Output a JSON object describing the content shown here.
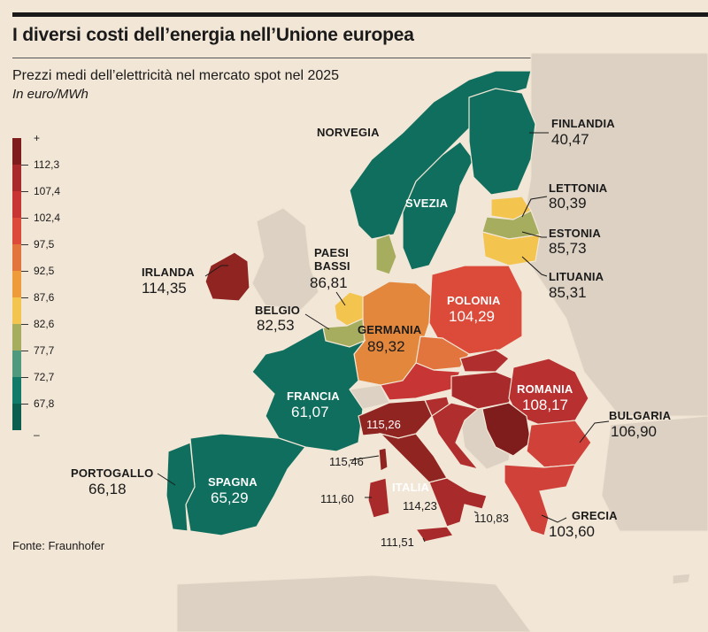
{
  "title": "I diversi costi dell’energia nell’Unione europea",
  "subtitle": "Prezzi medi dell’elettricità nel mercato spot nel 2025",
  "unit": "In euro/MWh",
  "source": "Fonte: Fraunhofer",
  "legend": {
    "top_label": "+",
    "bottom_label": "–",
    "ticks": [
      "112,3",
      "107,4",
      "102,4",
      "97,5",
      "92,5",
      "87,6",
      "82,6",
      "77,7",
      "72,7",
      "67,8"
    ],
    "colors": [
      "#7f1d1d",
      "#a82a2a",
      "#c83535",
      "#dc4a3a",
      "#e2753e",
      "#ee9b3c",
      "#f3c44e",
      "#a6ad5f",
      "#4f9a7e",
      "#117a68",
      "#0c5f4f"
    ]
  },
  "countries": {
    "norvegia": {
      "name": "NORVEGIA"
    },
    "svezia": {
      "name": "SVEZIA"
    },
    "finlandia": {
      "name": "FINLANDIA",
      "value": "40,47"
    },
    "lettonia": {
      "name": "LETTONIA",
      "value": "80,39"
    },
    "estonia": {
      "name": "ESTONIA",
      "value": "85,73"
    },
    "lituania": {
      "name": "LITUANIA",
      "value": "85,31"
    },
    "irlanda": {
      "name": "IRLANDA",
      "value": "114,35"
    },
    "paesibassi": {
      "name1": "PAESI",
      "name2": "BASSI",
      "value": "86,81"
    },
    "belgio": {
      "name": "BELGIO",
      "value": "82,53"
    },
    "germania": {
      "name": "GERMANIA",
      "value": "89,32"
    },
    "polonia": {
      "name": "POLONIA",
      "value": "104,29"
    },
    "francia": {
      "name": "FRANCIA",
      "value": "61,07"
    },
    "romania": {
      "name": "ROMANIA",
      "value": "108,17"
    },
    "bulgaria": {
      "name": "BULGARIA",
      "value": "106,90"
    },
    "portogallo": {
      "name": "PORTOGALLO",
      "value": "66,18"
    },
    "spagna": {
      "name": "SPAGNA",
      "value": "65,29"
    },
    "italia": {
      "name": "ITALIA",
      "value": "114,23"
    },
    "grecia": {
      "name": "GRECIA",
      "value": "103,60"
    }
  },
  "italy_zones": {
    "nord": "115,26",
    "corsica_sardegna_n": "115,46",
    "sardegna": "111,60",
    "sud": "110,83",
    "sicilia": "111,51"
  },
  "colors": {
    "background": "#f2e6d6",
    "non_eu_land": "#dcd1c2",
    "sea": "#f2e6d6"
  }
}
